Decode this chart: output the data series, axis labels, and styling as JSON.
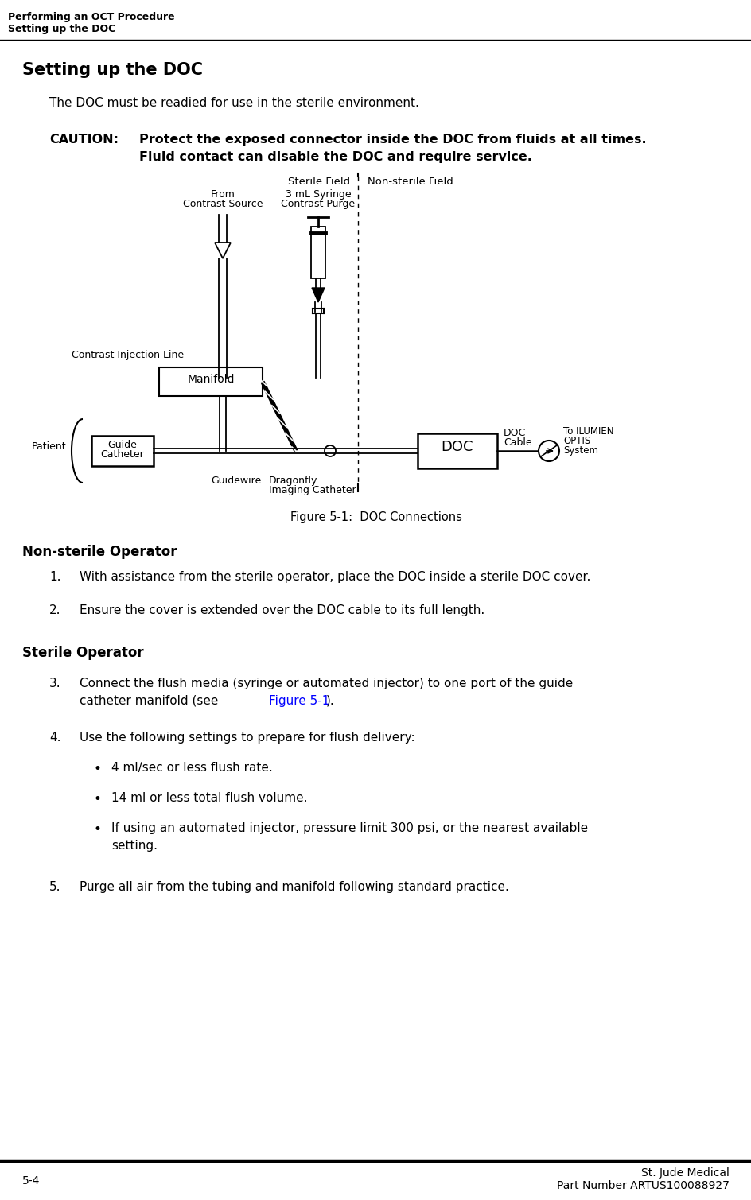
{
  "header_line1": "Performing an OCT Procedure",
  "header_line2": "Setting up the DOC",
  "section_title": "Setting up the DOC",
  "intro_text": "The DOC must be readied for use in the sterile environment.",
  "caution_label": "CAUTION:",
  "caution_text1": "Protect the exposed connector inside the DOC from fluids at all times.",
  "caution_text2": "Fluid contact can disable the DOC and require service.",
  "figure_caption": "Figure 5-1:  DOC Connections",
  "nonsterile_header": "Non-sterile Operator",
  "step1": "With assistance from the sterile operator, place the DOC inside a sterile DOC cover.",
  "step2": "Ensure the cover is extended over the DOC cable to its full length.",
  "sterile_header": "Sterile Operator",
  "step3a": "Connect the flush media (syringe or automated injector) to one port of the guide",
  "step3b": "catheter manifold (see Figure 5-1).",
  "step3b_link": "Figure 5-1",
  "step4": "Use the following settings to prepare for flush delivery:",
  "bullet1": "4 ml/sec or less flush rate.",
  "bullet2": "14 ml or less total flush volume.",
  "bullet3a": "If using an automated injector, pressure limit 300 psi, or the nearest available",
  "bullet3b": "setting.",
  "step5": "Purge all air from the tubing and manifold following standard practice.",
  "footer_left": "5-4",
  "footer_right1": "St. Jude Medical",
  "footer_right2": "Part Number ARTUS100088927",
  "bg_color": "#ffffff",
  "link_color": "#0000ff",
  "diagram": {
    "sterile_field_label": "Sterile Field",
    "nonsterile_field_label": "Non-sterile Field",
    "from_contrast_label1": "From",
    "from_contrast_label2": "Contrast Source",
    "syringe_label1": "3 mL Syringe",
    "syringe_label2": "Contrast Purge",
    "contrast_injection_label": "Contrast Injection Line",
    "manifold_label": "Manifold",
    "patient_label": "Patient",
    "guide_catheter_label1": "Guide",
    "guide_catheter_label2": "Catheter",
    "guidewire_label": "Guidewire",
    "dragonfly_label1": "Dragonfly",
    "dragonfly_label2": "Imaging Catheter",
    "doc_label": "DOC",
    "doc_cable_label1": "DOC",
    "doc_cable_label2": "Cable",
    "ilumien_label1": "To ILUMIEN",
    "ilumien_label2": "OPTIS",
    "ilumien_label3": "System"
  }
}
